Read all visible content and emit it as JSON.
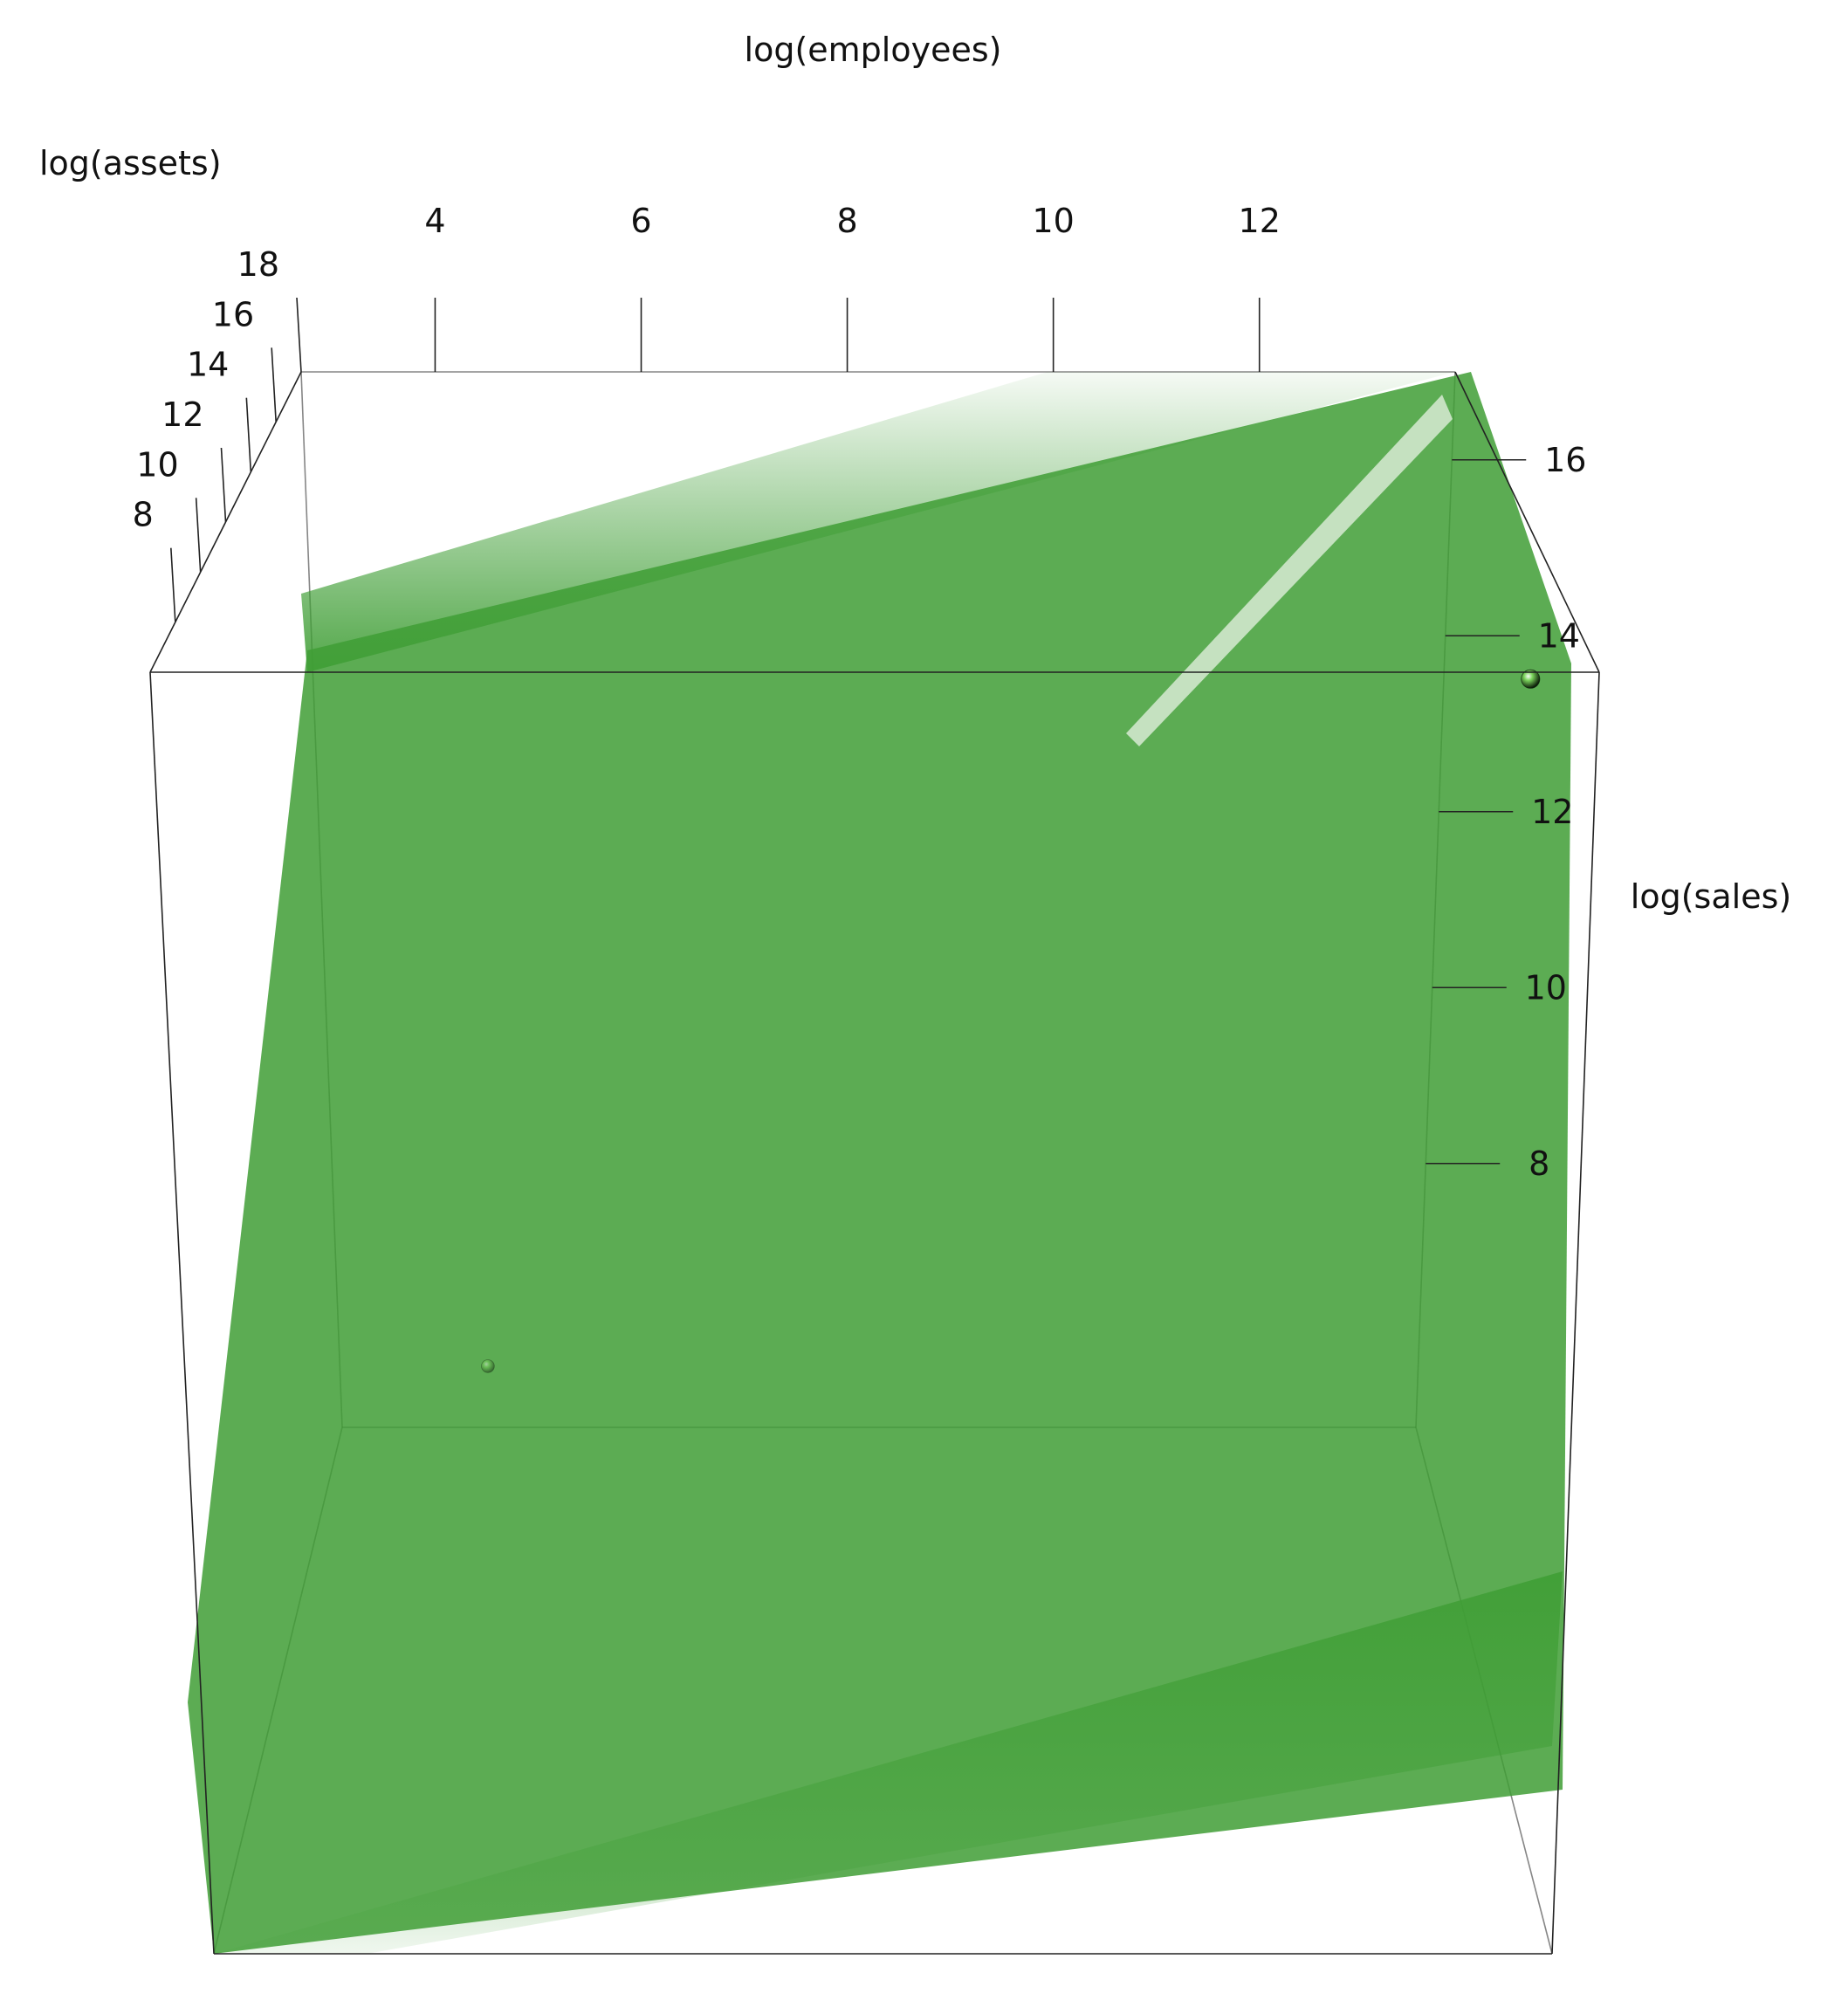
{
  "chart_data": {
    "type": "scatter",
    "title": "",
    "axes": {
      "x": {
        "label": "log(employees)",
        "ticks": [
          "4",
          "6",
          "8",
          "10",
          "12"
        ],
        "range": [
          2.7,
          13.9
        ]
      },
      "y": {
        "label": "log(sales)",
        "ticks": [
          "8",
          "10",
          "12",
          "14",
          "16"
        ],
        "range": [
          5.0,
          17.0
        ]
      },
      "z": {
        "label": "log(assets)",
        "ticks": [
          "8",
          "10",
          "12",
          "14",
          "16",
          "18"
        ],
        "range": [
          6.0,
          18.0
        ]
      }
    },
    "grid": false,
    "legend": "none",
    "regression_plane": {
      "color": "#3f9e35",
      "fill_opacity": 0.85
    },
    "point_colors": [
      "#7bd35c",
      "#2b5a25",
      "#1b1b1b",
      "#2ec8d8",
      "#e0b00f",
      "#c7c020",
      "#5fb84a"
    ],
    "points": [
      [
        4.2,
        5.5,
        5.6,
        0,
        0,
        0.45
      ],
      [
        13.5,
        16.6,
        16.6,
        0,
        0,
        1.0
      ]
    ]
  }
}
